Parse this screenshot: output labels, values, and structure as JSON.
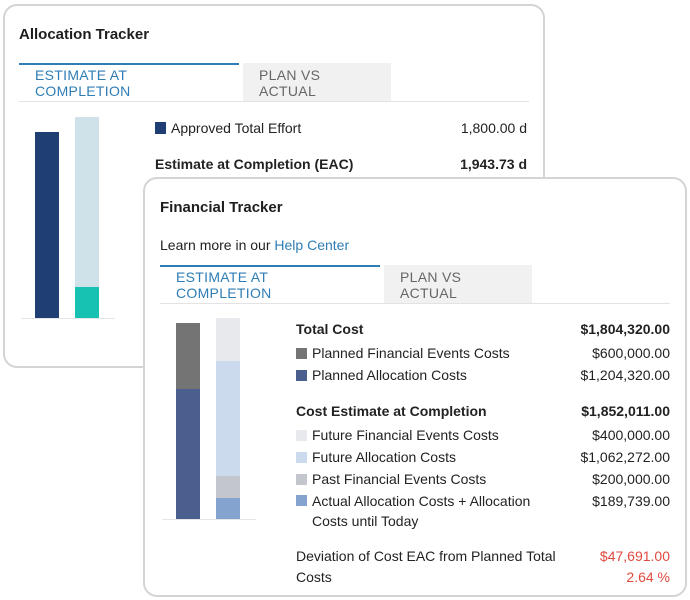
{
  "allocation_tracker": {
    "title": "Allocation Tracker",
    "tabs": [
      "ESTIMATE AT COMPLETION",
      "PLAN VS ACTUAL"
    ],
    "rows": [
      {
        "label": "Approved Total Effort",
        "value": "1,800.00 d",
        "color": "#1f3f73"
      },
      {
        "label": "Estimate at Completion (EAC)",
        "value": "1,943.73 d"
      }
    ],
    "chart_colors": {
      "approved": "#1f3f73",
      "eac_light": "#cfe2ea",
      "eac_teal": "#17c2b3"
    }
  },
  "financial_tracker": {
    "title": "Financial Tracker",
    "help_prefix": "Learn more in our",
    "help_link": "Help Center",
    "tabs": [
      "ESTIMATE AT COMPLETION",
      "PLAN VS ACTUAL"
    ],
    "total_cost": {
      "label": "Total Cost",
      "value": "$1,804,320.00"
    },
    "planned": [
      {
        "label": "Planned Financial Events Costs",
        "value": "$600,000.00",
        "color": "#747474"
      },
      {
        "label": "Planned Allocation Costs",
        "value": "$1,204,320.00",
        "color": "#4a5f8e"
      }
    ],
    "cost_eac": {
      "label": "Cost Estimate at Completion",
      "value": "$1,852,011.00"
    },
    "estimate": [
      {
        "label": "Future Financial Events Costs",
        "value": "$400,000.00",
        "color": "#e7e9ec"
      },
      {
        "label": "Future Allocation Costs",
        "value": "$1,062,272.00",
        "color": "#cbdbed"
      },
      {
        "label": "Past Financial Events Costs",
        "value": "$200,000.00",
        "color": "#c3c6cc"
      },
      {
        "label": "Actual Allocation Costs + Allocation Costs until Today",
        "label_line1": "Actual Allocation Costs + Allocation",
        "label_line2": "Costs until Today",
        "value": "$189,739.00",
        "color": "#84a3cf"
      }
    ],
    "deviation": {
      "label_line1": "Deviation of Cost EAC from Planned Total",
      "label_line2": "Costs",
      "value": "$47,691.00",
      "percent": "2.64 %",
      "color": "#e04a3f"
    }
  }
}
